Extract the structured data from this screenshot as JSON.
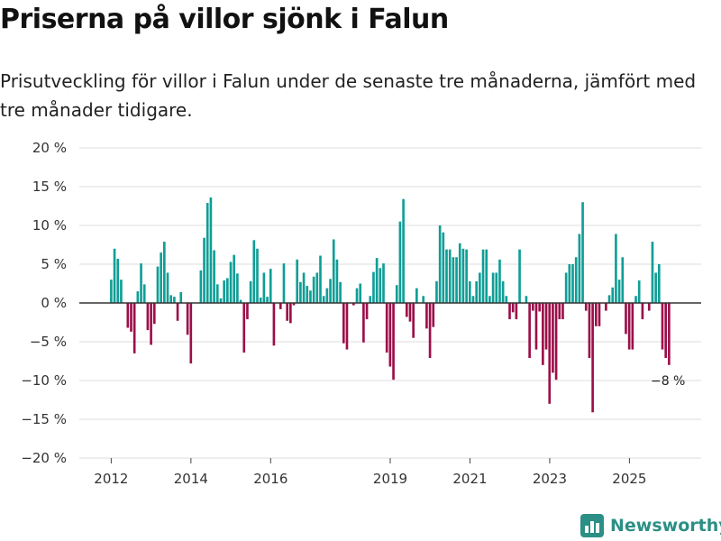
{
  "title": "Priserna på villor sjönk i Falun",
  "subtitle": "Prisutveckling för villor i Falun under de senaste tre månaderna, jämfört med tre månader tidigare.",
  "brand": {
    "name": "Newsworthy",
    "icon": "bar-chart-logo-icon"
  },
  "colors": {
    "positive": "#0f9e96",
    "negative": "#9c0f49",
    "grid": "#dddddd",
    "zero_line": "#333333",
    "brand": "#2b8f85"
  },
  "chart_data": {
    "type": "bar",
    "title": "Priserna på villor sjönk i Falun",
    "xlabel": "",
    "ylabel": "",
    "ylim": [
      -20,
      20
    ],
    "y_ticks": [
      {
        "value": 20,
        "label": "20 %"
      },
      {
        "value": 15,
        "label": "15 %"
      },
      {
        "value": 10,
        "label": "10 %"
      },
      {
        "value": 5,
        "label": "5 %"
      },
      {
        "value": 0,
        "label": "0 %"
      },
      {
        "value": -5,
        "label": "−5 %"
      },
      {
        "value": -10,
        "label": "−10 %"
      },
      {
        "value": -15,
        "label": "−15 %"
      },
      {
        "value": -20,
        "label": "−20 %"
      }
    ],
    "x_start": 2012.0,
    "x_step": 0.0833,
    "x_range": [
      2011.2,
      2026.8
    ],
    "x_ticks": [
      {
        "value": 2012,
        "label": "2012"
      },
      {
        "value": 2014,
        "label": "2014"
      },
      {
        "value": 2016,
        "label": "2016"
      },
      {
        "value": 2019,
        "label": "2019"
      },
      {
        "value": 2021,
        "label": "2021"
      },
      {
        "value": 2023,
        "label": "2023"
      },
      {
        "value": 2025,
        "label": "2025"
      }
    ],
    "values": [
      3,
      7,
      5.7,
      3,
      null,
      -3.2,
      -3.7,
      -6.5,
      1.5,
      5.1,
      2.4,
      -3.5,
      -5.4,
      -2.7,
      4.7,
      6.5,
      7.9,
      3.9,
      1.0,
      0.8,
      -2.3,
      1.4,
      null,
      -4.1,
      -7.8,
      null,
      null,
      4.2,
      8.4,
      12.9,
      13.6,
      6.8,
      2.4,
      0.6,
      2.9,
      3.2,
      5.3,
      6.2,
      3.8,
      0.4,
      -6.4,
      -2.1,
      2.8,
      8.1,
      7.0,
      0.7,
      3.9,
      0.8,
      4.4,
      -5.5,
      null,
      -0.8,
      5.1,
      -2.3,
      -2.6,
      -0.3,
      5.6,
      2.7,
      3.9,
      2.2,
      1.6,
      3.4,
      3.9,
      6.1,
      0.9,
      1.9,
      3.1,
      8.2,
      5.6,
      2.7,
      -5.2,
      -6.0,
      null,
      -0.3,
      1.9,
      2.5,
      -5.1,
      -2.1,
      0.9,
      4.0,
      5.8,
      4.5,
      5.1,
      -6.4,
      -8.2,
      -9.9,
      2.3,
      10.5,
      13.4,
      -1.8,
      -2.4,
      -4.5,
      1.9,
      null,
      0.9,
      -3.3,
      -7.1,
      -3.1,
      2.8,
      10,
      9.1,
      6.9,
      6.9,
      5.9,
      5.9,
      7.7,
      7.0,
      6.9,
      2.8,
      0.9,
      2.8,
      3.9,
      6.9,
      6.9,
      0.9,
      3.9,
      3.9,
      5.6,
      2.8,
      0.9,
      -2.1,
      -1.2,
      -2.1,
      6.9,
      null,
      0.9,
      -7.1,
      -1.0,
      -6.0,
      -1.1,
      -8.0,
      -6.0,
      -13.0,
      -9.0,
      -9.9,
      -2.1,
      -2.1,
      3.9,
      5.0,
      5.0,
      5.9,
      8.9,
      13.0,
      -1.0,
      -7.1,
      -14.1,
      -3.0,
      -3.0,
      null,
      -1.0,
      1.0,
      2.0,
      8.9,
      3.0,
      5.9,
      -4.0,
      -6.0,
      -6.0,
      0.9,
      2.9,
      -2.1,
      null,
      -1.0,
      7.9,
      3.9,
      5.0,
      -6.0,
      -7.1,
      -8.0
    ],
    "annotations": [
      {
        "index": 168,
        "text": "−8 %"
      }
    ]
  }
}
